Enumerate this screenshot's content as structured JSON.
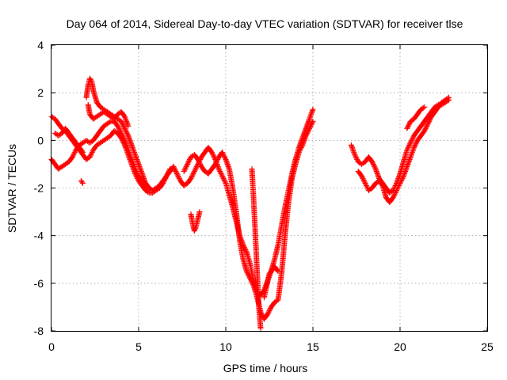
{
  "chart_data": {
    "type": "scatter",
    "title": "Day 064 of 2014, Sidereal Day-to-day VTEC variation (SDTVAR) for receiver tlse",
    "xlabel": "GPS time / hours",
    "ylabel": "SDTVAR / TECUs",
    "xlim": [
      0,
      25
    ],
    "ylim": [
      -8,
      4
    ],
    "x_ticks": [
      "0",
      "5",
      "10",
      "15",
      "20",
      "25"
    ],
    "y_ticks": [
      "-8",
      "-6",
      "-4",
      "-2",
      "0",
      "2",
      "4"
    ],
    "grid": true,
    "marker": "+",
    "color": "#ff0000",
    "series": [
      {
        "segments": [
          [
            [
              0.0,
              1.0
            ],
            [
              0.2,
              0.9
            ],
            [
              0.4,
              0.7
            ],
            [
              0.6,
              0.5
            ],
            [
              0.8,
              0.4
            ],
            [
              1.0,
              0.2
            ],
            [
              1.2,
              0.0
            ],
            [
              1.4,
              -0.2
            ],
            [
              1.6,
              -0.4
            ],
            [
              1.8,
              -0.6
            ],
            [
              2.0,
              -0.8
            ],
            [
              2.2,
              -0.7
            ],
            [
              2.4,
              -0.4
            ],
            [
              2.6,
              -0.2
            ],
            [
              2.8,
              -0.1
            ],
            [
              3.0,
              0.0
            ],
            [
              3.2,
              0.1
            ],
            [
              3.4,
              0.2
            ],
            [
              3.6,
              0.4
            ],
            [
              3.8,
              0.3
            ],
            [
              4.0,
              0.1
            ],
            [
              4.2,
              -0.2
            ],
            [
              4.4,
              -0.6
            ],
            [
              4.6,
              -1.0
            ],
            [
              4.8,
              -1.4
            ],
            [
              5.0,
              -1.7
            ],
            [
              5.2,
              -1.9
            ],
            [
              5.4,
              -2.1
            ],
            [
              5.6,
              -2.2
            ],
            [
              5.8,
              -2.2
            ],
            [
              6.0,
              -2.1
            ],
            [
              6.2,
              -2.0
            ],
            [
              6.4,
              -1.8
            ],
            [
              6.6,
              -1.5
            ],
            [
              6.8,
              -1.2
            ],
            [
              7.0,
              -1.2
            ]
          ],
          [
            [
              0.0,
              -0.8
            ],
            [
              0.2,
              -1.0
            ],
            [
              0.4,
              -1.2
            ],
            [
              0.6,
              -1.1
            ],
            [
              0.8,
              -1.0
            ],
            [
              1.0,
              -0.9
            ],
            [
              1.2,
              -0.7
            ],
            [
              1.4,
              -0.4
            ],
            [
              1.6,
              -0.2
            ],
            [
              1.8,
              -0.1
            ],
            [
              2.0,
              0.0
            ],
            [
              2.2,
              -0.1
            ],
            [
              2.4,
              0.0
            ],
            [
              2.6,
              0.2
            ],
            [
              2.8,
              0.4
            ],
            [
              3.0,
              0.6
            ],
            [
              3.2,
              0.7
            ],
            [
              3.4,
              0.8
            ],
            [
              3.6,
              0.8
            ],
            [
              3.8,
              0.6
            ],
            [
              4.0,
              0.3
            ],
            [
              4.2,
              0.0
            ],
            [
              4.4,
              -0.4
            ],
            [
              4.6,
              -0.8
            ],
            [
              4.8,
              -1.2
            ],
            [
              5.0,
              -1.5
            ],
            [
              5.2,
              -1.7
            ],
            [
              5.4,
              -1.9
            ],
            [
              5.6,
              -2.0
            ],
            [
              5.8,
              -2.1
            ],
            [
              6.0,
              -2.0
            ],
            [
              6.2,
              -1.9
            ],
            [
              6.4,
              -1.7
            ],
            [
              6.6,
              -1.5
            ],
            [
              6.8,
              -1.3
            ],
            [
              7.0,
              -1.1
            ]
          ],
          [
            [
              0.2,
              0.3
            ],
            [
              0.4,
              0.2
            ],
            [
              0.6,
              0.3
            ],
            [
              0.8,
              0.5
            ],
            [
              1.0,
              0.3
            ],
            [
              1.2,
              0.1
            ],
            [
              1.4,
              -0.1
            ],
            [
              1.6,
              -0.3
            ],
            [
              1.8,
              -0.5
            ]
          ],
          [
            [
              2.0,
              1.8
            ],
            [
              2.1,
              2.3
            ],
            [
              2.2,
              2.6
            ],
            [
              2.3,
              2.5
            ],
            [
              2.4,
              2.1
            ],
            [
              2.6,
              1.6
            ],
            [
              2.8,
              1.4
            ],
            [
              3.0,
              1.3
            ],
            [
              3.2,
              1.2
            ],
            [
              3.4,
              1.1
            ],
            [
              3.6,
              1.0
            ],
            [
              3.8,
              0.9
            ],
            [
              4.0,
              0.8
            ],
            [
              4.2,
              0.5
            ],
            [
              4.4,
              0.2
            ],
            [
              4.6,
              -0.2
            ],
            [
              4.8,
              -0.6
            ],
            [
              5.0,
              -1.0
            ],
            [
              5.2,
              -1.4
            ],
            [
              5.4,
              -1.8
            ],
            [
              5.6,
              -2.0
            ]
          ],
          [
            [
              2.1,
              1.5
            ],
            [
              2.2,
              1.1
            ],
            [
              2.4,
              0.9
            ],
            [
              2.6,
              1.0
            ],
            [
              2.8,
              1.1
            ],
            [
              3.0,
              1.2
            ],
            [
              3.2,
              1.1
            ],
            [
              3.4,
              1.0
            ],
            [
              3.6,
              0.9
            ],
            [
              3.8,
              1.1
            ],
            [
              4.0,
              1.2
            ],
            [
              4.2,
              1.0
            ],
            [
              4.4,
              0.6
            ]
          ],
          [
            [
              1.7,
              -1.7
            ],
            [
              1.8,
              -1.8
            ]
          ],
          [
            [
              7.0,
              -1.1
            ],
            [
              7.2,
              -1.4
            ],
            [
              7.4,
              -1.7
            ],
            [
              7.6,
              -1.9
            ],
            [
              7.8,
              -1.8
            ],
            [
              8.0,
              -1.6
            ],
            [
              8.2,
              -1.3
            ],
            [
              8.4,
              -1.0
            ],
            [
              8.6,
              -0.7
            ],
            [
              8.8,
              -0.5
            ],
            [
              9.0,
              -0.3
            ],
            [
              9.2,
              -0.5
            ],
            [
              9.4,
              -0.8
            ],
            [
              9.6,
              -1.2
            ],
            [
              9.8,
              -1.5
            ],
            [
              10.0,
              -1.8
            ],
            [
              10.2,
              -2.3
            ],
            [
              10.4,
              -2.8
            ],
            [
              10.6,
              -3.4
            ],
            [
              10.8,
              -4.0
            ],
            [
              11.0,
              -4.4
            ],
            [
              11.2,
              -4.7
            ],
            [
              11.4,
              -5.2
            ],
            [
              11.6,
              -5.9
            ],
            [
              11.8,
              -6.4
            ],
            [
              12.0,
              -6.5
            ],
            [
              12.2,
              -6.3
            ],
            [
              12.4,
              -5.9
            ],
            [
              12.6,
              -5.5
            ],
            [
              12.8,
              -5.0
            ],
            [
              13.0,
              -4.4
            ],
            [
              13.2,
              -3.6
            ],
            [
              13.4,
              -2.8
            ],
            [
              13.6,
              -2.1
            ],
            [
              13.8,
              -1.4
            ],
            [
              14.0,
              -0.8
            ],
            [
              14.2,
              -0.3
            ],
            [
              14.4,
              0.1
            ],
            [
              14.6,
              0.5
            ],
            [
              14.8,
              0.9
            ],
            [
              15.0,
              1.3
            ]
          ],
          [
            [
              7.6,
              -1.3
            ],
            [
              7.8,
              -1.0
            ],
            [
              8.0,
              -0.7
            ],
            [
              8.2,
              -0.6
            ],
            [
              8.4,
              -0.8
            ],
            [
              8.6,
              -1.1
            ],
            [
              8.8,
              -1.3
            ],
            [
              9.0,
              -1.4
            ],
            [
              9.2,
              -1.2
            ],
            [
              9.4,
              -1.0
            ],
            [
              9.6,
              -0.7
            ],
            [
              9.8,
              -0.5
            ],
            [
              10.0,
              -0.8
            ],
            [
              10.2,
              -1.2
            ],
            [
              10.4,
              -2.0
            ],
            [
              10.6,
              -3.0
            ],
            [
              10.8,
              -4.2
            ],
            [
              11.0,
              -5.0
            ],
            [
              11.2,
              -5.5
            ],
            [
              11.4,
              -5.8
            ],
            [
              11.6,
              -6.1
            ],
            [
              11.8,
              -6.6
            ],
            [
              12.0,
              -7.2
            ],
            [
              12.2,
              -7.5
            ],
            [
              12.4,
              -7.3
            ],
            [
              12.6,
              -7.0
            ],
            [
              12.8,
              -6.8
            ],
            [
              13.0,
              -6.7
            ],
            [
              13.2,
              -5.6
            ],
            [
              13.4,
              -4.0
            ],
            [
              13.6,
              -2.6
            ],
            [
              13.8,
              -1.6
            ],
            [
              14.0,
              -1.0
            ],
            [
              14.2,
              -0.5
            ],
            [
              14.4,
              -0.2
            ],
            [
              14.6,
              0.2
            ],
            [
              14.8,
              0.5
            ],
            [
              15.0,
              0.8
            ]
          ],
          [
            [
              8.0,
              -3.1
            ],
            [
              8.1,
              -3.5
            ],
            [
              8.2,
              -3.8
            ],
            [
              8.3,
              -3.6
            ],
            [
              8.4,
              -3.3
            ],
            [
              8.5,
              -3.0
            ]
          ],
          [
            [
              11.5,
              -1.2
            ],
            [
              11.6,
              -2.5
            ],
            [
              11.7,
              -4.0
            ],
            [
              11.8,
              -5.5
            ],
            [
              11.9,
              -7.0
            ],
            [
              12.0,
              -7.9
            ]
          ],
          [
            [
              12.2,
              -6.6
            ],
            [
              12.5,
              -5.6
            ],
            [
              12.8,
              -5.3
            ],
            [
              13.0,
              -5.5
            ]
          ],
          [
            [
              17.2,
              -0.2
            ],
            [
              17.4,
              -0.6
            ],
            [
              17.6,
              -0.9
            ],
            [
              17.8,
              -1.0
            ],
            [
              18.0,
              -0.9
            ],
            [
              18.2,
              -0.7
            ],
            [
              18.4,
              -0.9
            ],
            [
              18.6,
              -1.2
            ],
            [
              18.8,
              -1.6
            ],
            [
              19.0,
              -1.8
            ],
            [
              19.2,
              -2.0
            ],
            [
              19.4,
              -2.2
            ],
            [
              19.6,
              -2.1
            ],
            [
              19.8,
              -1.8
            ],
            [
              20.0,
              -1.4
            ],
            [
              20.2,
              -0.9
            ],
            [
              20.4,
              -0.4
            ],
            [
              20.6,
              -0.1
            ],
            [
              20.8,
              0.2
            ],
            [
              21.0,
              0.4
            ],
            [
              21.2,
              0.6
            ],
            [
              21.4,
              0.8
            ],
            [
              21.6,
              1.0
            ],
            [
              21.8,
              1.2
            ],
            [
              22.0,
              1.4
            ],
            [
              22.2,
              1.5
            ],
            [
              22.4,
              1.5
            ],
            [
              22.6,
              1.6
            ],
            [
              22.8,
              1.7
            ]
          ],
          [
            [
              17.6,
              -1.3
            ],
            [
              17.8,
              -1.5
            ],
            [
              18.0,
              -1.8
            ],
            [
              18.2,
              -2.1
            ],
            [
              18.4,
              -2.0
            ],
            [
              18.6,
              -1.8
            ],
            [
              18.8,
              -1.7
            ],
            [
              19.0,
              -1.9
            ],
            [
              19.2,
              -2.4
            ],
            [
              19.4,
              -2.6
            ],
            [
              19.6,
              -2.4
            ],
            [
              19.8,
              -2.1
            ],
            [
              20.0,
              -1.8
            ],
            [
              20.2,
              -1.5
            ],
            [
              20.4,
              -1.1
            ],
            [
              20.6,
              -0.7
            ],
            [
              20.8,
              -0.3
            ],
            [
              21.0,
              0.0
            ],
            [
              21.2,
              0.2
            ],
            [
              21.4,
              0.4
            ],
            [
              21.6,
              0.7
            ],
            [
              21.8,
              1.0
            ],
            [
              22.0,
              1.2
            ],
            [
              22.2,
              1.4
            ],
            [
              22.4,
              1.6
            ],
            [
              22.6,
              1.7
            ],
            [
              22.8,
              1.8
            ]
          ],
          [
            [
              20.4,
              0.5
            ],
            [
              20.6,
              0.8
            ],
            [
              20.8,
              0.9
            ],
            [
              21.0,
              1.1
            ],
            [
              21.2,
              1.3
            ],
            [
              21.4,
              1.4
            ]
          ]
        ]
      }
    ]
  }
}
